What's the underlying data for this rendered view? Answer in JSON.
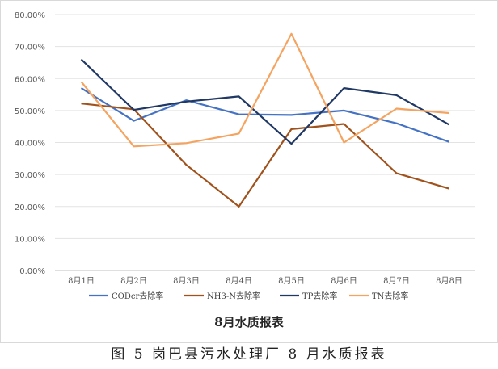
{
  "figure_caption": "图 5 岗巴县污水处理厂 8 月水质报表",
  "chart_data": {
    "type": "line",
    "title": "8月水质报表",
    "xlabel": "",
    "ylabel": "",
    "categories": [
      "8月1日",
      "8月2日",
      "8月3日",
      "8月4日",
      "8月5日",
      "8月6日",
      "8月7日",
      "8月8日"
    ],
    "ylim": [
      0,
      80
    ],
    "yticks": [
      "0.00%",
      "10.00%",
      "20.00%",
      "30.00%",
      "40.00%",
      "50.00%",
      "60.00%",
      "70.00%",
      "80.00%"
    ],
    "grid": true,
    "legend_position": "bottom",
    "series": [
      {
        "name": "CODcr去除率",
        "color": "#4472C4",
        "values": [
          57.0,
          46.8,
          53.2,
          48.8,
          48.6,
          50.0,
          46.0,
          40.2
        ]
      },
      {
        "name": "NH3-N去除率",
        "color": "#A0521C",
        "values": [
          52.2,
          50.4,
          33.0,
          20.0,
          44.2,
          45.8,
          30.4,
          25.6
        ]
      },
      {
        "name": "TP去除率",
        "color": "#203864",
        "values": [
          66.0,
          50.2,
          52.8,
          54.4,
          39.6,
          57.0,
          54.8,
          45.6
        ]
      },
      {
        "name": "TN去除率",
        "color": "#F4A460",
        "values": [
          59.0,
          38.8,
          39.8,
          42.8,
          74.0,
          40.0,
          50.6,
          49.2
        ]
      }
    ]
  }
}
